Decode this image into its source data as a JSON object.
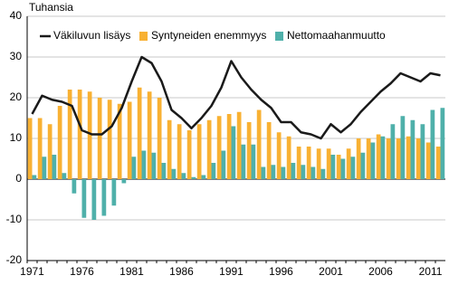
{
  "chart_data": {
    "type": "bar",
    "y_label": "Tuhansia",
    "categories": [
      "1971",
      null,
      null,
      null,
      null,
      "1976",
      null,
      null,
      null,
      null,
      "1981",
      null,
      null,
      null,
      null,
      "1986",
      null,
      null,
      null,
      null,
      "1991",
      null,
      null,
      null,
      null,
      "1996",
      null,
      null,
      null,
      null,
      "2001",
      null,
      null,
      null,
      null,
      "2006",
      null,
      null,
      null,
      null,
      "2011",
      null
    ],
    "series": [
      {
        "name": "Väkiluvun lisäys",
        "type": "line",
        "color": "#1a1a1a",
        "values": [
          16,
          20.5,
          19.5,
          19,
          18,
          12,
          11,
          11,
          13,
          17.5,
          24,
          30,
          28.5,
          24,
          17,
          15,
          12.5,
          15,
          18,
          22.5,
          29,
          25,
          22,
          19.5,
          17.5,
          14,
          14,
          11.5,
          11,
          10,
          13.5,
          11.5,
          13.5,
          16.5,
          19,
          21.5,
          23.5,
          26,
          25,
          24,
          26,
          25.5
        ]
      },
      {
        "name": "Syntyneiden enemmyys",
        "type": "bar",
        "color": "#f8b133",
        "values": [
          15,
          15,
          13.5,
          18,
          22,
          22,
          21.5,
          20,
          19.5,
          18.5,
          19,
          22.5,
          21.5,
          20,
          14.5,
          13.5,
          12,
          13.5,
          14.5,
          15.5,
          16,
          16.5,
          14,
          17,
          14,
          11.5,
          10.5,
          8,
          8,
          7.5,
          7.5,
          6,
          7.5,
          10,
          10,
          11,
          10,
          10,
          10.5,
          10,
          9,
          8
        ]
      },
      {
        "name": "Nettomaahanmuutto",
        "type": "bar",
        "color": "#4fb0aa",
        "values": [
          1,
          5.5,
          6,
          1.5,
          -3.5,
          -9.5,
          -10,
          -9,
          -6.5,
          -1,
          5.5,
          7,
          6.5,
          4,
          2.5,
          1.5,
          0.5,
          1,
          4,
          7,
          13,
          8.5,
          8.5,
          3,
          3.5,
          3,
          4,
          3.5,
          3,
          2.5,
          6,
          5,
          5.5,
          6.5,
          9,
          10.5,
          13.5,
          15.5,
          14.5,
          13.5,
          17,
          17.5
        ]
      }
    ],
    "ylim": [
      -20,
      40
    ],
    "yticks": [
      -20,
      -10,
      0,
      10,
      20,
      30,
      40
    ],
    "grid": true,
    "legend": "top"
  }
}
